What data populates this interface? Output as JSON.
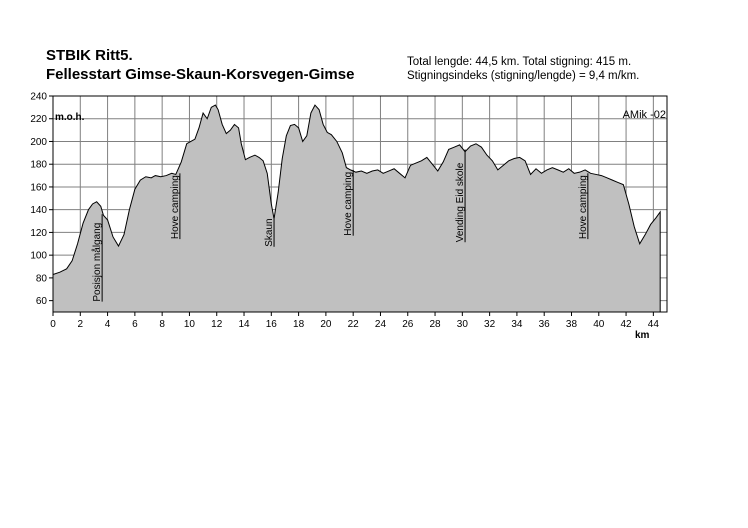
{
  "header": {
    "title_line1": "STBIK Ritt5.",
    "title_line2": "Fellesstart Gimse-Skaun-Korsvegen-Gimse",
    "stats_line1": "Total lengde: 44,5 km.  Total stigning:  415 m.",
    "stats_line2": "Stigningsindeks (stigning/lengde) = 9,4 m/km."
  },
  "chart_data": {
    "type": "area",
    "title": "",
    "xlabel": "km",
    "ylabel": "m.o.h.",
    "xlim": [
      0,
      45
    ],
    "ylim": [
      50,
      240
    ],
    "x_ticks": [
      0,
      2,
      4,
      6,
      8,
      10,
      12,
      14,
      16,
      18,
      20,
      22,
      24,
      26,
      28,
      30,
      32,
      34,
      36,
      38,
      40,
      42,
      44
    ],
    "y_ticks": [
      60,
      80,
      100,
      120,
      140,
      160,
      180,
      200,
      220,
      240
    ],
    "grid": true,
    "watermark": "AMik -02",
    "fill_color": "#c0c0c0",
    "series": [
      {
        "x": [
          0,
          0.5,
          1.0,
          1.4,
          1.8,
          2.2,
          2.6,
          2.9,
          3.2,
          3.5,
          3.7,
          4.0,
          4.4,
          4.8,
          5.2,
          5.6,
          6.0,
          6.4,
          6.8,
          7.2,
          7.5,
          7.9,
          8.3,
          8.7,
          9.0,
          9.4,
          9.8,
          10.1,
          10.4,
          10.7,
          11.0,
          11.3,
          11.6,
          11.9,
          12.1,
          12.4,
          12.7,
          13.0,
          13.3,
          13.6,
          13.8,
          14.1,
          14.4,
          14.8,
          15.1,
          15.4,
          15.7,
          16.0,
          16.2,
          16.5,
          16.8,
          17.1,
          17.4,
          17.7,
          18.0,
          18.3,
          18.6,
          18.9,
          19.2,
          19.5,
          19.8,
          20.1,
          20.4,
          20.8,
          21.2,
          21.5,
          21.8,
          22.2,
          22.6,
          23.0,
          23.4,
          23.8,
          24.2,
          24.6,
          25.0,
          25.4,
          25.8,
          26.2,
          26.6,
          27.0,
          27.4,
          27.8,
          28.2,
          28.6,
          29.0,
          29.4,
          29.8,
          30.2,
          30.6,
          31.0,
          31.4,
          31.8,
          32.2,
          32.6,
          33.0,
          33.4,
          33.8,
          34.2,
          34.6,
          35.0,
          35.4,
          35.8,
          36.2,
          36.6,
          37.0,
          37.4,
          37.8,
          38.2,
          38.6,
          39.0,
          39.4,
          39.8,
          40.2,
          40.6,
          41.0,
          41.4,
          41.8,
          42.2,
          42.6,
          43.0,
          43.4,
          43.8,
          44.2,
          44.5
        ],
        "y": [
          83,
          85,
          88,
          95,
          110,
          128,
          140,
          145,
          147,
          143,
          135,
          131,
          116,
          108,
          118,
          140,
          158,
          166,
          169,
          168,
          170,
          169,
          170,
          172,
          171,
          182,
          198,
          200,
          202,
          212,
          225,
          220,
          230,
          232,
          228,
          215,
          207,
          210,
          215,
          212,
          198,
          184,
          186,
          188,
          186,
          183,
          172,
          145,
          132,
          155,
          185,
          205,
          214,
          215,
          212,
          200,
          205,
          225,
          232,
          228,
          215,
          208,
          206,
          200,
          190,
          177,
          175,
          173,
          174,
          172,
          174,
          175,
          172,
          174,
          176,
          172,
          168,
          179,
          181,
          183,
          186,
          180,
          174,
          182,
          193,
          195,
          197,
          191,
          196,
          198,
          195,
          188,
          183,
          175,
          179,
          183,
          185,
          186,
          183,
          171,
          176,
          172,
          175,
          177,
          175,
          173,
          176,
          172,
          173,
          175,
          172,
          171,
          170,
          168,
          166,
          164,
          162,
          145,
          125,
          110,
          118,
          127,
          133,
          138
        ]
      }
    ],
    "annotations": [
      {
        "x": 3.6,
        "y": 136,
        "label": "Posisjon målgang"
      },
      {
        "x": 9.3,
        "y": 172,
        "label": "Hove camping"
      },
      {
        "x": 16.2,
        "y": 132,
        "label": "Skaun"
      },
      {
        "x": 22.0,
        "y": 175,
        "label": "Hove camping"
      },
      {
        "x": 30.2,
        "y": 193,
        "label": "Vending Eid skole"
      },
      {
        "x": 39.2,
        "y": 172,
        "label": "Hove camping"
      }
    ]
  }
}
